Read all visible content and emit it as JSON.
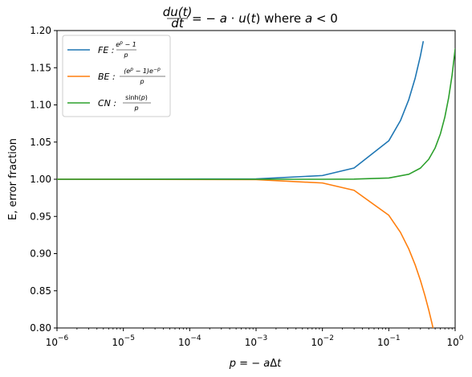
{
  "chart_data": {
    "type": "line",
    "title": "du(t)/dt = −a · u(t) where a < 0",
    "xlabel": "p = −aΔt",
    "ylabel": "E, error fraction",
    "xscale": "log",
    "xlim": [
      1e-06,
      1
    ],
    "ylim": [
      0.8,
      1.2
    ],
    "xticks": [
      1e-06,
      1e-05,
      0.0001,
      0.001,
      0.01,
      0.1,
      1
    ],
    "xtick_labels": [
      {
        "base": "10",
        "exp": "−6"
      },
      {
        "base": "10",
        "exp": "−5"
      },
      {
        "base": "10",
        "exp": "−4"
      },
      {
        "base": "10",
        "exp": "−3"
      },
      {
        "base": "10",
        "exp": "−2"
      },
      {
        "base": "10",
        "exp": "−1"
      },
      {
        "base": "10",
        "exp": "0"
      }
    ],
    "yticks": [
      0.8,
      0.85,
      0.9,
      0.95,
      1.0,
      1.05,
      1.1,
      1.15,
      1.2
    ],
    "ytick_labels": [
      "0.80",
      "0.85",
      "0.90",
      "0.95",
      "1.00",
      "1.05",
      "1.10",
      "1.15",
      "1.20"
    ],
    "grid": false,
    "legend_position": "top-left",
    "series": [
      {
        "name": "FE : (e^p − 1)/p",
        "color": "#1f77b4",
        "x": [
          1e-06,
          0.001,
          0.01,
          0.03,
          0.1,
          0.15,
          0.2,
          0.25,
          0.3,
          0.33
        ],
        "y": [
          1.0,
          1.0005,
          1.005,
          1.0151,
          1.0517,
          1.0789,
          1.107,
          1.1361,
          1.1662,
          1.185
        ]
      },
      {
        "name": "BE : (e^p − 1)e^−p / p",
        "color": "#ff7f0e",
        "x": [
          1e-06,
          0.001,
          0.01,
          0.03,
          0.1,
          0.15,
          0.2,
          0.25,
          0.3,
          0.35,
          0.4,
          0.45,
          0.5
        ],
        "y": [
          1.0,
          0.9995,
          0.995,
          0.9851,
          0.9516,
          0.9286,
          0.9063,
          0.8848,
          0.8639,
          0.8437,
          0.8242,
          0.8053,
          0.7869
        ]
      },
      {
        "name": "CN : sinh(p)/p",
        "color": "#2ca02c",
        "x": [
          1e-06,
          0.001,
          0.01,
          0.03,
          0.1,
          0.2,
          0.3,
          0.4,
          0.5,
          0.6,
          0.7,
          0.8,
          0.9,
          1.0
        ],
        "y": [
          1.0,
          1.0,
          1.0,
          1.0002,
          1.0017,
          1.0067,
          1.015,
          1.0269,
          1.0422,
          1.0611,
          1.0837,
          1.1101,
          1.1403,
          1.1752
        ]
      }
    ]
  }
}
